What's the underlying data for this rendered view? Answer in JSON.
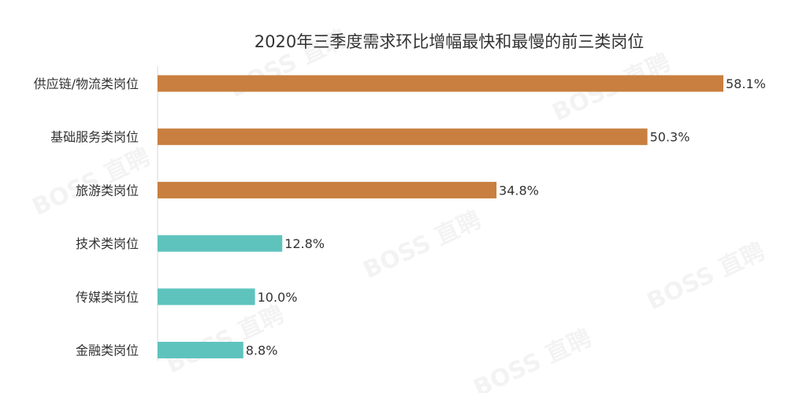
{
  "chart_data": {
    "type": "bar",
    "orientation": "horizontal",
    "title": "2020年三季度需求环比增幅最快和最慢的前三类岗位",
    "categories": [
      "供应链/物流类岗位",
      "基础服务类岗位",
      "旅游类岗位",
      "技术类岗位",
      "传媒类岗位",
      "金融类岗位"
    ],
    "values": [
      58.1,
      50.3,
      34.8,
      12.8,
      10.0,
      8.8
    ],
    "value_labels": [
      "58.1%",
      "50.3%",
      "34.8%",
      "12.8%",
      "10.0%",
      "8.8%"
    ],
    "bar_colors": [
      "#C87F3F",
      "#C87F3F",
      "#C87F3F",
      "#5FC3BD",
      "#5FC3BD",
      "#5FC3BD"
    ],
    "xlim": [
      0,
      58.1
    ],
    "grid": false,
    "legend": "none"
  },
  "watermark": "BOSS 直聘"
}
